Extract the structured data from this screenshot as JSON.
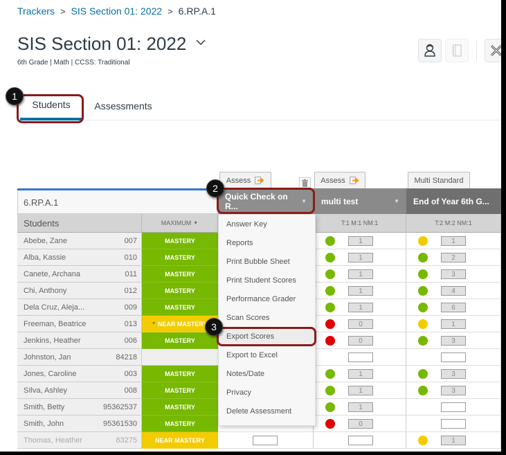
{
  "breadcrumb": {
    "items": [
      {
        "label": "Trackers",
        "link": true
      },
      {
        "label": "SIS Section 01: 2022",
        "link": true
      },
      {
        "label": "6.RP.A.1",
        "link": false
      }
    ],
    "separator": ">"
  },
  "header": {
    "title": "SIS Section 01: 2022",
    "subtitle": "6th Grade | Math | CCSS: Traditional",
    "tools": [
      {
        "icon": "student-icon",
        "enabled": true
      },
      {
        "icon": "notebook-icon",
        "enabled": false
      },
      {
        "icon": "tools-icon",
        "enabled": true
      }
    ]
  },
  "tabs": [
    {
      "label": "Students",
      "active": true
    },
    {
      "label": "Assessments",
      "active": false
    }
  ],
  "callouts": [
    "1",
    "2",
    "3"
  ],
  "colors": {
    "link": "#0770a3",
    "tab_active": "#0770a3",
    "mastery": "#77b800",
    "near_mastery": "#f2cc00",
    "red": "#e00000",
    "highlight": "#8b1a1a"
  },
  "tracker": {
    "standard": "6.RP.A.1",
    "students_header": "Students",
    "maximum_header": "MAXIMUM",
    "assess_label": "Assess",
    "multi_standard_label": "Multi Standard",
    "columns": [
      {
        "title": "Quick Check on R...",
        "subheader": "",
        "bg": "#8e8e8e"
      },
      {
        "title": "multi test",
        "subheader": "T:1 M:1 NM:1",
        "bg": "#8a8a8a"
      },
      {
        "title": "End of Year 6th G...",
        "subheader": "T:2 M:2 NM:1",
        "bg": "#6f6f6f"
      }
    ],
    "rows": [
      {
        "name": "Abebe, Zane",
        "id": "007",
        "max": "MASTERY",
        "max_type": "mastery",
        "c2": {
          "dot": "green",
          "score": "1"
        },
        "c3": {
          "dot": "yellow",
          "score": "1"
        }
      },
      {
        "name": "Alba, Kassie",
        "id": "010",
        "max": "MASTERY",
        "max_type": "mastery",
        "c2": {
          "dot": "green",
          "score": "1"
        },
        "c3": {
          "dot": "green",
          "score": "2"
        }
      },
      {
        "name": "Canete, Archana",
        "id": "011",
        "max": "MASTERY",
        "max_type": "mastery",
        "c2": {
          "dot": "green",
          "score": "1"
        },
        "c3": {
          "dot": "green",
          "score": "3"
        }
      },
      {
        "name": "Chi, Anthony",
        "id": "012",
        "max": "MASTERY",
        "max_type": "mastery",
        "c2": {
          "dot": "green",
          "score": "1"
        },
        "c3": {
          "dot": "green",
          "score": "4"
        }
      },
      {
        "name": "Dela Cruz, Aleja...",
        "id": "009",
        "max": "MASTERY",
        "max_type": "mastery",
        "c2": {
          "dot": "green",
          "score": "1"
        },
        "c3": {
          "dot": "green",
          "score": "6"
        }
      },
      {
        "name": "Freeman, Beatrice",
        "id": "013",
        "max": "NEAR MASTERY",
        "max_type": "near",
        "star": "*",
        "c2": {
          "dot": "red",
          "score": "0"
        },
        "c3": {
          "dot": "yellow",
          "score": "1"
        }
      },
      {
        "name": "Jenkins, Heather",
        "id": "006",
        "max": "MASTERY",
        "max_type": "mastery",
        "c2": {
          "dot": "red",
          "score": "0"
        },
        "c3": {
          "dot": "green",
          "score": "3"
        }
      },
      {
        "name": "Johnston, Jan",
        "id": "84218",
        "max": "",
        "max_type": "empty",
        "c2": {
          "dot": "",
          "score": ""
        },
        "c3": {
          "dot": "",
          "score": ""
        }
      },
      {
        "name": "Jones, Caroline",
        "id": "003",
        "max": "MASTERY",
        "max_type": "mastery",
        "c2": {
          "dot": "green",
          "score": "1"
        },
        "c3": {
          "dot": "green",
          "score": "3"
        }
      },
      {
        "name": "SIlva, Ashley",
        "id": "008",
        "max": "MASTERY",
        "max_type": "mastery",
        "c2": {
          "dot": "green",
          "score": "1"
        },
        "c3": {
          "dot": "green",
          "score": "3"
        }
      },
      {
        "name": "Smith, Betty",
        "id": "95362537",
        "max": "MASTERY",
        "max_type": "mastery",
        "c2": {
          "dot": "green",
          "score": "1"
        },
        "c3": {
          "dot": "",
          "score": ""
        }
      },
      {
        "name": "Smith, John",
        "id": "95361530",
        "max": "MASTERY",
        "max_type": "mastery",
        "c2": {
          "dot": "red",
          "score": "0"
        },
        "c3": {
          "dot": "",
          "score": ""
        }
      },
      {
        "name": "Thomas, Heather",
        "id": "83275",
        "max": "NEAR MASTERY",
        "max_type": "near",
        "dim": true,
        "c2": {
          "dot": "",
          "score": ""
        },
        "c3": {
          "dot": "yellow",
          "score": "1"
        }
      }
    ]
  },
  "dropdown_menu": {
    "items": [
      "Answer Key",
      "Reports",
      "Print Bubble Sheet",
      "Print Student Scores",
      "Performance Grader",
      "Scan Scores",
      "Export Scores",
      "Export to Excel",
      "Notes/Date",
      "Privacy",
      "Delete Assessment"
    ],
    "highlighted": "Export Scores"
  }
}
